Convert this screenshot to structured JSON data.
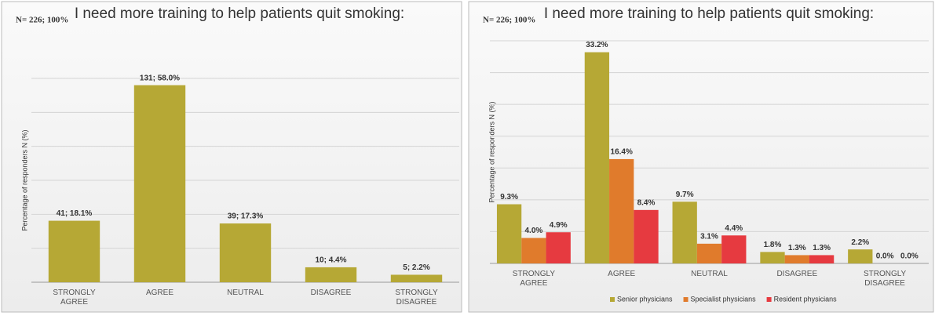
{
  "chart_data": [
    {
      "type": "bar",
      "title": "I need more training to help patients quit smoking:",
      "subtitle": "N= 226; 100%",
      "y_label": "Percentage of responders N (%)",
      "categories": [
        "STRONGLY AGREE",
        "AGREE",
        "NEUTRAL",
        "DISAGREE",
        "STRONGLY DISAGREE"
      ],
      "values": [
        18.1,
        58.0,
        17.3,
        4.4,
        2.2
      ],
      "value_labels": [
        "41; 18.1%",
        "131; 58.0%",
        "39; 17.3%",
        "10; 4.4%",
        "5; 2.2%"
      ],
      "color": "#b6a835",
      "ylim": [
        0,
        60
      ],
      "yticks": [
        0,
        10,
        20,
        30,
        40,
        50,
        60
      ],
      "grid": true
    },
    {
      "type": "bar",
      "title": "I need more training to help patients quit smoking:",
      "subtitle": "N= 226; 100%",
      "y_label": "Percentage of responders N (%)",
      "categories": [
        "STRONGLY AGREE",
        "AGREE",
        "NEUTRAL",
        "DISAGREE",
        "STRONGLY DISAGREE"
      ],
      "series": [
        {
          "name": "Senior physicians",
          "color": "#b6a835",
          "values": [
            9.3,
            33.2,
            9.7,
            1.8,
            2.2
          ],
          "value_labels": [
            "9.3%",
            "33.2%",
            "9.7%",
            "1.8%",
            "2.2%"
          ]
        },
        {
          "name": "Specialist physicians",
          "color": "#e07b2c",
          "values": [
            4.0,
            16.4,
            3.1,
            1.3,
            0.0
          ],
          "value_labels": [
            "4.0%",
            "16.4%",
            "3.1%",
            "1.3%",
            "0.0%"
          ]
        },
        {
          "name": "Resident physicians",
          "color": "#e63a40",
          "values": [
            4.9,
            8.4,
            4.4,
            1.3,
            0.0
          ],
          "value_labels": [
            "4.9%",
            "8.4%",
            "4.4%",
            "1.3%",
            "0.0%"
          ]
        }
      ],
      "ylim": [
        0,
        35
      ],
      "yticks": [
        0,
        5,
        10,
        15,
        20,
        25,
        30,
        35
      ],
      "grid": true,
      "legend": "bottom"
    }
  ]
}
